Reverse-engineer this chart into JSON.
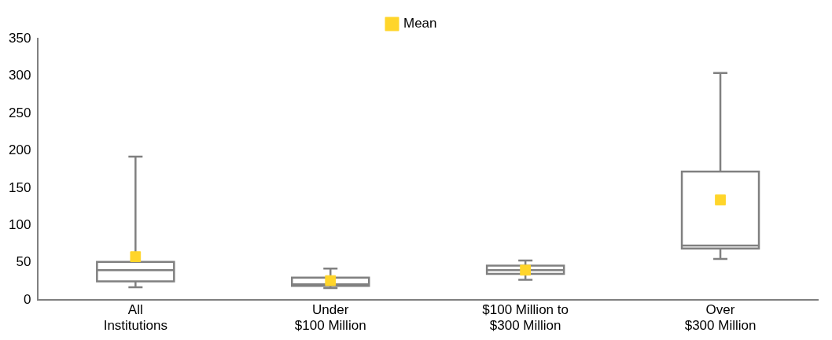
{
  "chart_data": {
    "type": "box",
    "categories": [
      "All\nInstitutions",
      "Under\n$100 Million",
      "$100 Million to\n$300 Million",
      "Over\n$300 Million"
    ],
    "boxes": [
      {
        "low": 17,
        "q1": 25,
        "median": 40,
        "q3": 51,
        "high": 192
      },
      {
        "low": 16,
        "q1": 19,
        "median": 21,
        "q3": 30,
        "high": 42
      },
      {
        "low": 27,
        "q1": 35,
        "median": 40,
        "q3": 46,
        "high": 53
      },
      {
        "low": 55,
        "q1": 69,
        "median": 73,
        "q3": 172,
        "high": 304
      }
    ],
    "series": [
      {
        "name": "Mean",
        "type": "scatter",
        "color": "#ffd52a",
        "marker": "square",
        "values": [
          58,
          26,
          40,
          134
        ]
      }
    ],
    "ylim": [
      0,
      350
    ],
    "yticks": [
      0,
      50,
      100,
      150,
      200,
      250,
      300,
      350
    ],
    "grid": false,
    "legend": "top"
  }
}
